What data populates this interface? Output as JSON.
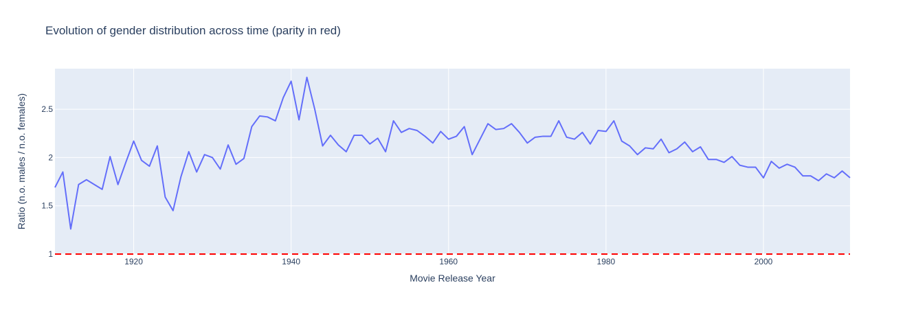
{
  "chart_data": {
    "type": "line",
    "title": "Evolution of gender distribution across time (parity in red)",
    "xlabel": "Movie Release Year",
    "ylabel": "Ratio (n.o. males / n.o. females)",
    "xlim": [
      1910,
      2011
    ],
    "ylim": [
      1.0,
      2.92
    ],
    "x_ticks": [
      1920,
      1940,
      1960,
      1980,
      2000
    ],
    "y_ticks": [
      1,
      1.5,
      2,
      2.5
    ],
    "x_tick_labels": [
      "1920",
      "1940",
      "1960",
      "1980",
      "2000"
    ],
    "y_tick_labels": [
      "1",
      "1.5",
      "2",
      "2.5"
    ],
    "grid": true,
    "legend": "none",
    "series": [
      {
        "color": "#636efa",
        "x": [
          1910,
          1911,
          1912,
          1913,
          1914,
          1915,
          1916,
          1917,
          1918,
          1919,
          1920,
          1921,
          1922,
          1923,
          1924,
          1925,
          1926,
          1927,
          1928,
          1929,
          1930,
          1931,
          1932,
          1933,
          1934,
          1935,
          1936,
          1937,
          1938,
          1939,
          1940,
          1941,
          1942,
          1943,
          1944,
          1945,
          1946,
          1947,
          1948,
          1949,
          1950,
          1951,
          1952,
          1953,
          1954,
          1955,
          1956,
          1957,
          1958,
          1959,
          1960,
          1961,
          1962,
          1963,
          1965,
          1966,
          1967,
          1968,
          1969,
          1970,
          1971,
          1972,
          1973,
          1974,
          1975,
          1976,
          1977,
          1978,
          1979,
          1980,
          1981,
          1982,
          1983,
          1984,
          1985,
          1986,
          1987,
          1988,
          1989,
          1990,
          1991,
          1992,
          1993,
          1994,
          1995,
          1996,
          1997,
          1998,
          1999,
          2000,
          2001,
          2002,
          2003,
          2004,
          2005,
          2006,
          2007,
          2008,
          2009,
          2010,
          2011
        ],
        "values": [
          1.69,
          1.85,
          1.26,
          1.72,
          1.77,
          1.72,
          1.67,
          2.01,
          1.72,
          1.95,
          2.17,
          1.97,
          1.91,
          2.12,
          1.59,
          1.45,
          1.8,
          2.06,
          1.85,
          2.03,
          2.0,
          1.88,
          2.13,
          1.93,
          1.99,
          2.32,
          2.43,
          2.42,
          2.38,
          2.62,
          2.79,
          2.39,
          2.83,
          2.5,
          2.12,
          2.23,
          2.13,
          2.06,
          2.23,
          2.23,
          2.14,
          2.2,
          2.06,
          2.38,
          2.26,
          2.3,
          2.28,
          2.22,
          2.15,
          2.27,
          2.19,
          2.22,
          2.32,
          2.03,
          2.35,
          2.29,
          2.3,
          2.35,
          2.26,
          2.15,
          2.21,
          2.22,
          2.22,
          2.38,
          2.21,
          2.19,
          2.26,
          2.14,
          2.28,
          2.27,
          2.38,
          2.17,
          2.12,
          2.03,
          2.1,
          2.09,
          2.19,
          2.05,
          2.09,
          2.16,
          2.06,
          2.11,
          1.98,
          1.98,
          1.95,
          2.01,
          1.92,
          1.9,
          1.9,
          1.79,
          1.96,
          1.89,
          1.93,
          1.9,
          1.81,
          1.81,
          1.76,
          1.83,
          1.79,
          1.86,
          1.79
        ]
      },
      {
        "color": "#ff0000",
        "dash": "dashed",
        "x": [
          1910,
          2011
        ],
        "values": [
          1,
          1
        ]
      }
    ]
  }
}
